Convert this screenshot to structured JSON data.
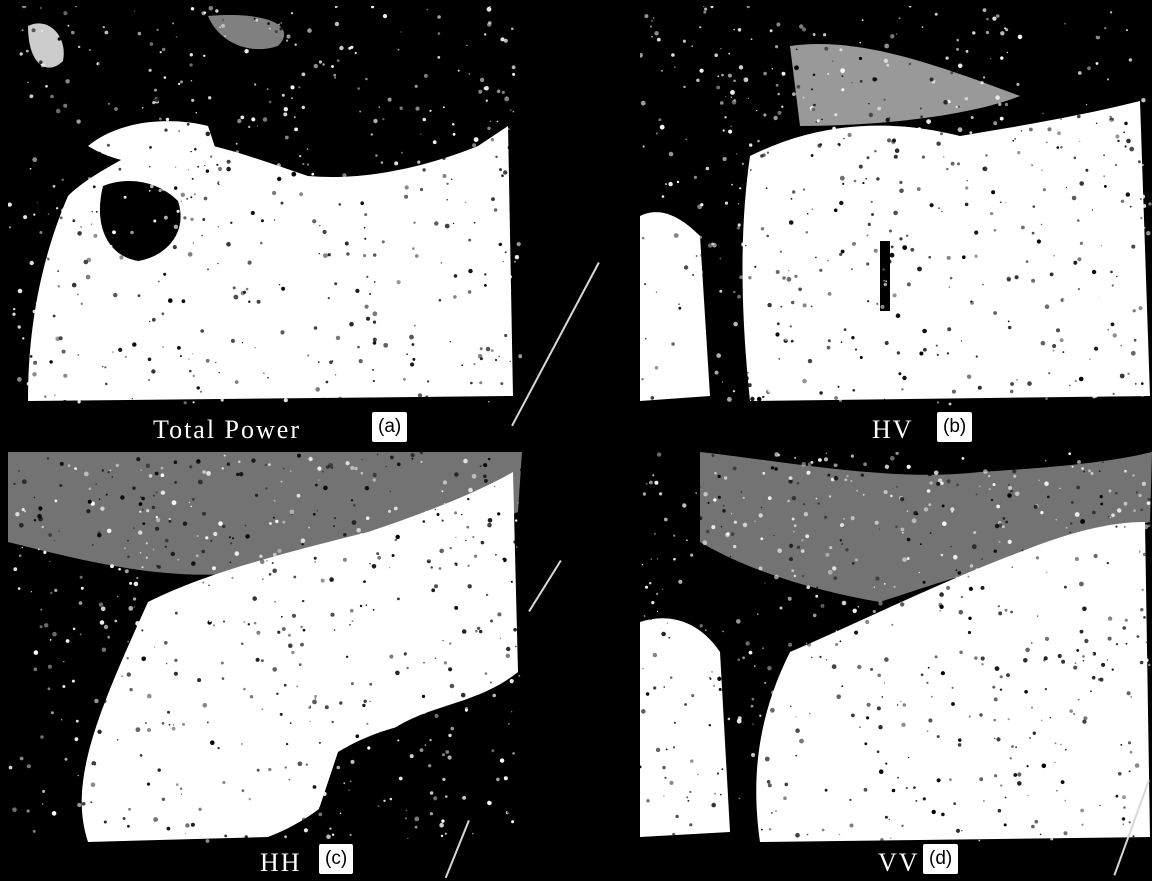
{
  "figure": {
    "background": "#000000",
    "foreground": "#ffffff",
    "panels": [
      {
        "id": "a",
        "caption": "Total Power",
        "tag": "(a)"
      },
      {
        "id": "b",
        "caption": "HV",
        "tag": "(b)"
      },
      {
        "id": "c",
        "caption": "HH",
        "tag": "(c)"
      },
      {
        "id": "d",
        "caption": "VV",
        "tag": "(d)"
      }
    ]
  }
}
